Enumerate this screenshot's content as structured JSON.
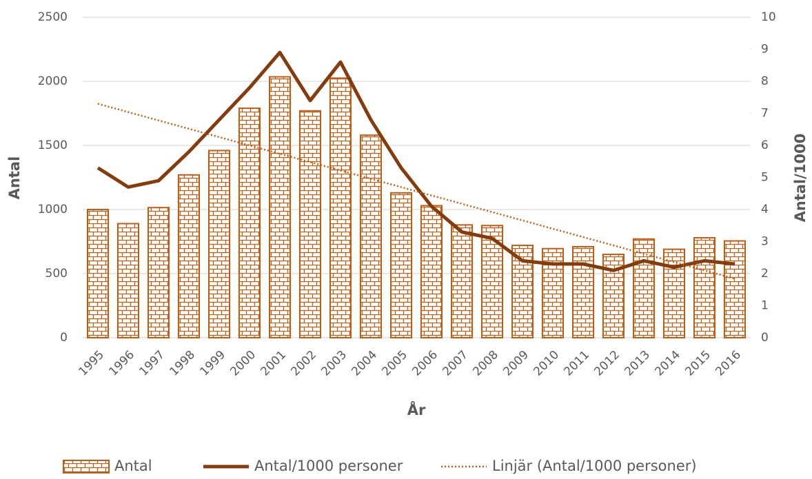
{
  "chart_data": {
    "type": "bar",
    "x_label": "År",
    "y_label": "Antal",
    "y2_label": "Antal/1000",
    "categories": [
      "1995",
      "1996",
      "1997",
      "1998",
      "1999",
      "2000",
      "2001",
      "2002",
      "2003",
      "2004",
      "2005",
      "2006",
      "2007",
      "2008",
      "2009",
      "2010",
      "2011",
      "2012",
      "2013",
      "2014",
      "2015",
      "2016"
    ],
    "series": [
      {
        "name": "Antal",
        "type": "bar",
        "color": "#c55a11",
        "axis": "y",
        "values": [
          1000,
          890,
          1015,
          1270,
          1460,
          1790,
          2035,
          1770,
          2025,
          1580,
          1130,
          1030,
          880,
          875,
          720,
          695,
          710,
          650,
          770,
          690,
          780,
          755
        ]
      },
      {
        "name": "Antal/1000 personer",
        "type": "line",
        "color": "#843c0c",
        "axis": "y2",
        "line_style": "solid",
        "values": [
          5.3,
          4.7,
          4.9,
          5.8,
          6.8,
          7.8,
          8.9,
          7.4,
          8.6,
          6.8,
          5.3,
          4.1,
          3.3,
          3.1,
          2.4,
          2.3,
          2.3,
          2.1,
          2.4,
          2.2,
          2.4,
          2.3
        ]
      },
      {
        "name": "Linjär (Antal/1000 personer)",
        "type": "line",
        "color": "#c55a11",
        "axis": "y2",
        "line_style": "dotted",
        "values": [
          7.3,
          7.04,
          6.78,
          6.52,
          6.26,
          6.0,
          5.74,
          5.48,
          5.22,
          4.96,
          4.7,
          4.44,
          4.18,
          3.92,
          3.66,
          3.4,
          3.14,
          2.88,
          2.62,
          2.36,
          2.1,
          1.84
        ]
      }
    ],
    "ylim": [
      0,
      2500
    ],
    "yticks": [
      0,
      500,
      1000,
      1500,
      2000,
      2500
    ],
    "y2lim": [
      0,
      10
    ],
    "y2ticks": [
      0,
      1,
      2,
      3,
      4,
      5,
      6,
      7,
      8,
      9,
      10
    ],
    "grid": true,
    "legend": "bottom"
  }
}
